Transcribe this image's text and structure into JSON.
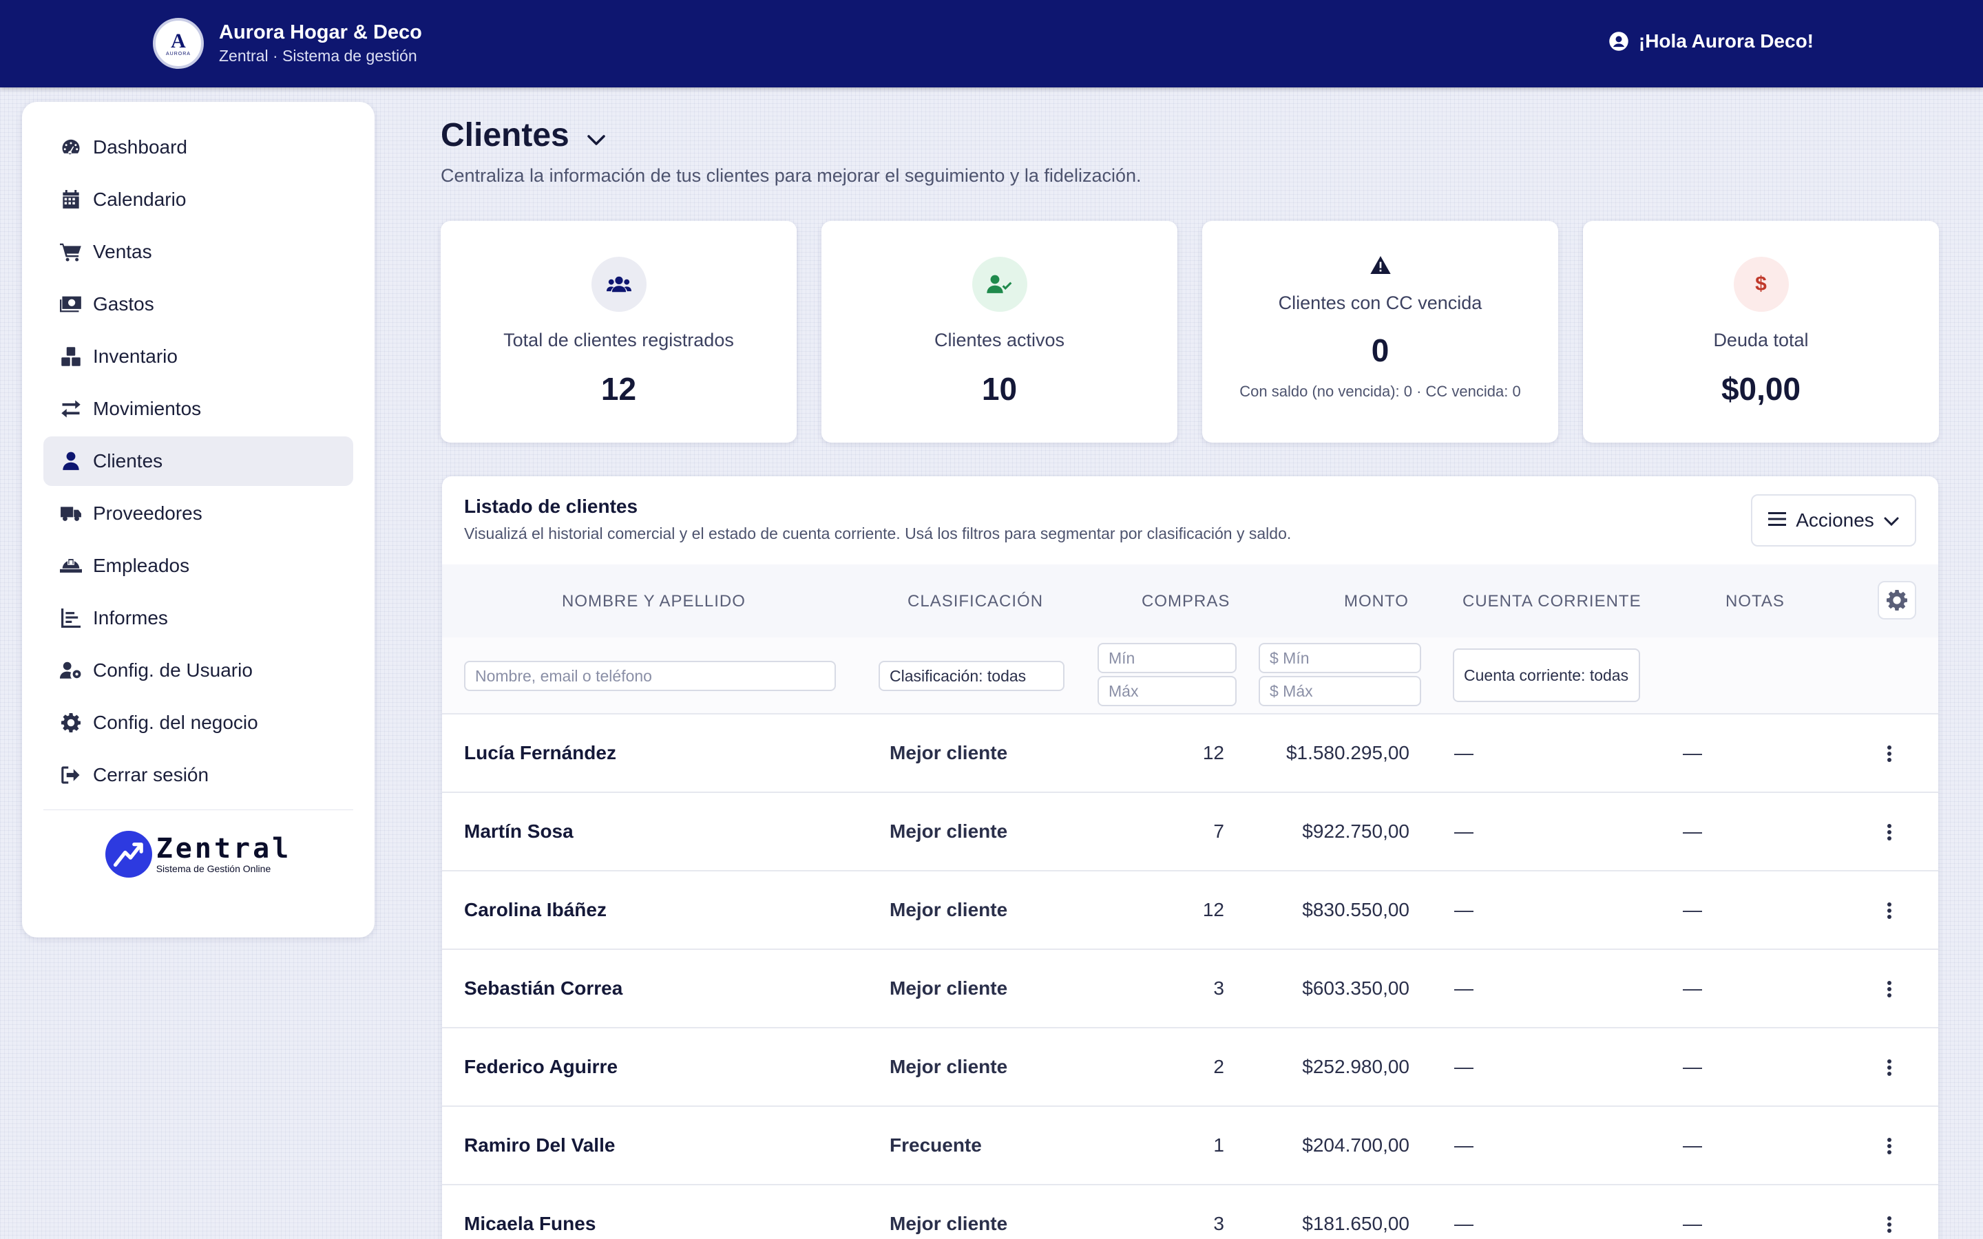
{
  "header": {
    "brand_logo_letter": "A",
    "brand_logo_sub": "AURORA",
    "brand_name": "Aurora Hogar & Deco",
    "brand_subtitle": "Zentral · Sistema de gestión",
    "greeting": "¡Hola Aurora Deco!"
  },
  "sidebar": {
    "items": [
      {
        "label": "Dashboard",
        "icon": "gauge-icon"
      },
      {
        "label": "Calendario",
        "icon": "calendar-icon"
      },
      {
        "label": "Ventas",
        "icon": "cart-icon"
      },
      {
        "label": "Gastos",
        "icon": "money-icon"
      },
      {
        "label": "Inventario",
        "icon": "boxes-icon"
      },
      {
        "label": "Movimientos",
        "icon": "arrows-icon"
      },
      {
        "label": "Clientes",
        "icon": "user-icon",
        "active": true
      },
      {
        "label": "Proveedores",
        "icon": "truck-icon"
      },
      {
        "label": "Empleados",
        "icon": "hardhat-icon"
      },
      {
        "label": "Informes",
        "icon": "chart-icon"
      },
      {
        "label": "Config. de Usuario",
        "icon": "user-gear-icon"
      },
      {
        "label": "Config. del negocio",
        "icon": "gear-icon"
      },
      {
        "label": "Cerrar sesión",
        "icon": "logout-icon"
      }
    ],
    "logo_name": "Zentral",
    "logo_tagline": "Sistema de Gestión Online"
  },
  "page": {
    "title": "Clientes",
    "description": "Centraliza la información de tus clientes para mejorar el seguimiento y la fidelización."
  },
  "stats": [
    {
      "label": "Total de clientes registrados",
      "value": "12",
      "icon": "users-icon"
    },
    {
      "label": "Clientes activos",
      "value": "10",
      "icon": "user-check-icon"
    },
    {
      "label": "Clientes con CC vencida",
      "value": "0",
      "icon": "warning-icon",
      "note": "Con saldo (no vencida): 0 · CC vencida: 0"
    },
    {
      "label": "Deuda total",
      "value": "$0,00",
      "icon": "dollar-icon"
    }
  ],
  "panel": {
    "title": "Listado de clientes",
    "subtitle": "Visualizá el historial comercial y el estado de cuenta corriente. Usá los filtros para segmentar por clasificación y saldo.",
    "actions_label": "Acciones"
  },
  "table": {
    "columns": [
      "NOMBRE Y APELLIDO",
      "CLASIFICACIÓN",
      "COMPRAS",
      "MONTO",
      "CUENTA CORRIENTE",
      "NOTAS"
    ],
    "filters": {
      "name_placeholder": "Nombre, email o teléfono",
      "classification": "Clasificación: todas",
      "min": "Mín",
      "max": "Máx",
      "amount_min": "$ Mín",
      "amount_max": "$ Máx",
      "current_account": "Cuenta corriente: todas"
    },
    "rows": [
      {
        "name": "Lucía Fernández",
        "classification": "Mejor cliente",
        "purchases": "12",
        "amount": "$1.580.295,00",
        "account": "—",
        "notes": "—"
      },
      {
        "name": "Martín Sosa",
        "classification": "Mejor cliente",
        "purchases": "7",
        "amount": "$922.750,00",
        "account": "—",
        "notes": "—"
      },
      {
        "name": "Carolina Ibáñez",
        "classification": "Mejor cliente",
        "purchases": "12",
        "amount": "$830.550,00",
        "account": "—",
        "notes": "—"
      },
      {
        "name": "Sebastián Correa",
        "classification": "Mejor cliente",
        "purchases": "3",
        "amount": "$603.350,00",
        "account": "—",
        "notes": "—"
      },
      {
        "name": "Federico Aguirre",
        "classification": "Mejor cliente",
        "purchases": "2",
        "amount": "$252.980,00",
        "account": "—",
        "notes": "—"
      },
      {
        "name": "Ramiro Del Valle",
        "classification": "Frecuente",
        "purchases": "1",
        "amount": "$204.700,00",
        "account": "—",
        "notes": "—"
      },
      {
        "name": "Micaela Funes",
        "classification": "Mejor cliente",
        "purchases": "3",
        "amount": "$181.650,00",
        "account": "—",
        "notes": "—"
      }
    ]
  },
  "colors": {
    "header_bg": "#0e1670",
    "accent": "#2d3ae0",
    "success": "#1f8a4c",
    "danger": "#c0392b"
  }
}
